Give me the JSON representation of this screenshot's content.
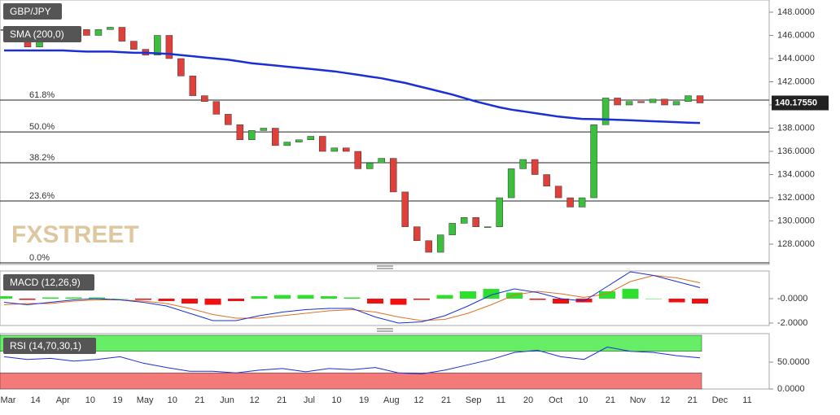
{
  "chart_data": [
    {
      "type": "candlestick",
      "title": "GBP/JPY",
      "indicator": "SMA (200,0)",
      "watermark": "FXSTREET",
      "closes": [
        146.5,
        145.5,
        145,
        146.2,
        146.5,
        145.5,
        146.5,
        146,
        146.5,
        146.7,
        145.5,
        144.8,
        144.3,
        146,
        144,
        142.5,
        140.8,
        140.3,
        139.2,
        138.3,
        137,
        137.8,
        138,
        136.5,
        136.8,
        137,
        137.3,
        136,
        136.3,
        136,
        134.5,
        135,
        135.4,
        132.5,
        129.5,
        128.3,
        127.3,
        128.8,
        129.8,
        130.3,
        129.5,
        129.5,
        132,
        134.5,
        135.3,
        134,
        133,
        132,
        131.2,
        132,
        138.3,
        140.6,
        140,
        140.3,
        140.2,
        140.5,
        140,
        140.3,
        140.8,
        140.1755
      ],
      "sma": [
        144.7,
        144.7,
        144.7,
        144.7,
        144.7,
        144.7,
        144.65,
        144.6,
        144.6,
        144.6,
        144.55,
        144.5,
        144.5,
        144.45,
        144.4,
        144.3,
        144.2,
        144.1,
        144,
        143.9,
        143.75,
        143.6,
        143.5,
        143.4,
        143.3,
        143.2,
        143.1,
        143,
        142.9,
        142.75,
        142.6,
        142.45,
        142.3,
        142.1,
        141.9,
        141.65,
        141.4,
        141.15,
        140.9,
        140.6,
        140.3,
        140.05,
        139.8,
        139.6,
        139.45,
        139.3,
        139.15,
        139.0,
        138.9,
        138.8,
        138.78,
        138.75,
        138.72,
        138.68,
        138.64,
        138.6,
        138.56,
        138.52,
        138.48,
        138.45
      ],
      "sma_color": "#1a2fd6",
      "fib_levels": [
        {
          "name": "61.8%",
          "value": 140.42
        },
        {
          "name": "50.0%",
          "value": 137.68
        },
        {
          "name": "38.2%",
          "value": 135.02
        },
        {
          "name": "23.6%",
          "value": 131.72
        },
        {
          "name": "0.0%",
          "value": 126.39
        }
      ],
      "last_price": {
        "value": 140.1755,
        "label": "140.17550"
      },
      "ylim": [
        126.25,
        149.05
      ],
      "yticks": [
        {
          "value": 128,
          "label": "128.0000"
        },
        {
          "value": 130,
          "label": "130.0000"
        },
        {
          "value": 132,
          "label": "132.0000"
        },
        {
          "value": 134,
          "label": "134.0000"
        },
        {
          "value": 136,
          "label": "136.0000"
        },
        {
          "value": 138,
          "label": "138.0000"
        },
        {
          "value": 140,
          "label": "140.0000"
        },
        {
          "value": 142,
          "label": "142.0000"
        },
        {
          "value": 144,
          "label": "144.0000"
        },
        {
          "value": 146,
          "label": "146.0000"
        },
        {
          "value": 148,
          "label": "148.0000"
        }
      ],
      "date_labels": [
        "Mar",
        "14",
        "Apr",
        "10",
        "19",
        "May",
        "10",
        "21",
        "Jun",
        "12",
        "21",
        "Jul",
        "10",
        "19",
        "Aug",
        "12",
        "21",
        "Sep",
        "11",
        "20",
        "Oct",
        "10",
        "21",
        "Nov",
        "12",
        "21",
        "Dec",
        "11"
      ],
      "up_color": "#3cbf3c",
      "down_color": "#e0403a"
    },
    {
      "type": "macd",
      "title": "MACD (12,26,9)",
      "macd": [
        -0.3,
        -0.5,
        -0.3,
        -0.1,
        0,
        -0.1,
        -0.3,
        -0.6,
        -1.2,
        -1.8,
        -1.8,
        -1.4,
        -1.1,
        -0.9,
        -0.8,
        -0.8,
        -1.5,
        -2.0,
        -1.9,
        -1.4,
        -0.6,
        0.3,
        0.8,
        0.5,
        0,
        -0.2,
        1.0,
        2.2,
        1.9,
        1.4,
        0.9
      ],
      "signal": [
        -0.5,
        -0.4,
        -0.4,
        -0.2,
        -0.1,
        -0.1,
        -0.2,
        -0.4,
        -0.8,
        -1.3,
        -1.6,
        -1.6,
        -1.4,
        -1.2,
        -1.0,
        -0.9,
        -1.1,
        -1.5,
        -1.8,
        -1.7,
        -1.2,
        -0.5,
        0.3,
        0.6,
        0.4,
        0.1,
        0.4,
        1.4,
        1.9,
        1.7,
        1.3
      ],
      "histogram": [
        0.2,
        -0.1,
        0.1,
        0.1,
        0.1,
        0,
        -0.1,
        -0.2,
        -0.4,
        -0.5,
        -0.2,
        0.2,
        0.3,
        0.3,
        0.2,
        0.1,
        -0.4,
        -0.5,
        -0.1,
        0.3,
        0.6,
        0.8,
        0.5,
        -0.1,
        -0.4,
        -0.3,
        0.6,
        0.8,
        0,
        -0.3,
        -0.4
      ],
      "macd_color": "#1a2fd6",
      "signal_color": "#e07020",
      "pos_color": "#2ee02e",
      "neg_color": "#f01010",
      "ylim": [
        -2.2,
        2.27
      ],
      "yticks": [
        {
          "value": -2,
          "label": "-2.0000"
        },
        {
          "value": 0,
          "label": "-0.0000"
        }
      ]
    },
    {
      "type": "rsi",
      "title": "RSI (14,70,30,1)",
      "values": [
        60,
        55,
        57,
        52,
        55,
        60,
        48,
        40,
        33,
        33,
        30,
        35,
        38,
        32,
        38,
        36,
        40,
        30,
        28,
        35,
        45,
        55,
        68,
        72,
        60,
        55,
        78,
        70,
        68,
        62,
        58
      ],
      "overbought": 70,
      "oversold": 30,
      "color": "#1a2fd6",
      "ob_color": "#66ee66",
      "os_color": "#f47a7a",
      "ylim": [
        0,
        103
      ],
      "yticks": [
        {
          "value": 0,
          "label": "0.0000"
        },
        {
          "value": 50,
          "label": "50.0000"
        }
      ]
    }
  ]
}
